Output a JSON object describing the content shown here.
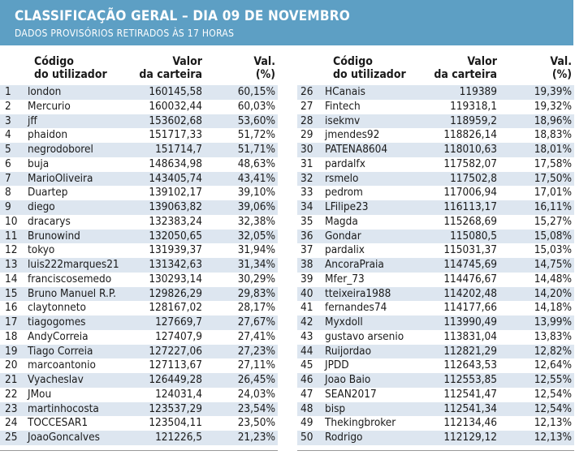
{
  "header": {
    "title": "CLASSIFICAÇÃO GERAL – DIA 09 DE NOVEMBRO",
    "subtitle": "DADOS PROVISÓRIOS RETIRADOS ÀS 17 HORAS"
  },
  "columns": {
    "user_line1": "Código",
    "user_line2": "do utilizador",
    "value_line1": "Valor",
    "value_line2": "da carteira",
    "pct_line1": "Val.",
    "pct_line2": "(%)"
  },
  "rows": [
    {
      "rank": "1",
      "user": "london",
      "value": "160145,58",
      "pct": "60,15%"
    },
    {
      "rank": "2",
      "user": "Mercurio",
      "value": "160032,44",
      "pct": "60,03%"
    },
    {
      "rank": "3",
      "user": "jff",
      "value": "153602,68",
      "pct": "53,60%"
    },
    {
      "rank": "4",
      "user": "phaidon",
      "value": "151717,33",
      "pct": "51,72%"
    },
    {
      "rank": "5",
      "user": "negrodoborel",
      "value": "151714,7",
      "pct": "51,71%"
    },
    {
      "rank": "6",
      "user": "buja",
      "value": "148634,98",
      "pct": "48,63%"
    },
    {
      "rank": "7",
      "user": "MarioOliveira",
      "value": "143405,74",
      "pct": "43,41%"
    },
    {
      "rank": "8",
      "user": "Duartep",
      "value": "139102,17",
      "pct": "39,10%"
    },
    {
      "rank": "9",
      "user": "diego",
      "value": "139063,82",
      "pct": "39,06%"
    },
    {
      "rank": "10",
      "user": "dracarys",
      "value": "132383,24",
      "pct": "32,38%"
    },
    {
      "rank": "11",
      "user": "Brunowind",
      "value": "132050,65",
      "pct": "32,05%"
    },
    {
      "rank": "12",
      "user": "tokyo",
      "value": "131939,37",
      "pct": "31,94%"
    },
    {
      "rank": "13",
      "user": "luis222marques21",
      "value": "131342,63",
      "pct": "31,34%"
    },
    {
      "rank": "14",
      "user": "franciscosemedo",
      "value": "130293,14",
      "pct": "30,29%"
    },
    {
      "rank": "15",
      "user": "Bruno Manuel R.P.",
      "value": "129826,29",
      "pct": "29,83%"
    },
    {
      "rank": "16",
      "user": "claytonneto",
      "value": "128167,02",
      "pct": "28,17%"
    },
    {
      "rank": "17",
      "user": "tiagogomes",
      "value": "127669,7",
      "pct": "27,67%"
    },
    {
      "rank": "18",
      "user": "AndyCorreia",
      "value": "127407,9",
      "pct": "27,41%"
    },
    {
      "rank": "19",
      "user": "Tiago Correia",
      "value": "127227,06",
      "pct": "27,23%"
    },
    {
      "rank": "20",
      "user": "marcoantonio",
      "value": "127113,67",
      "pct": "27,11%"
    },
    {
      "rank": "21",
      "user": "Vyacheslav",
      "value": "126449,28",
      "pct": "26,45%"
    },
    {
      "rank": "22",
      "user": "JMou",
      "value": "124031,4",
      "pct": "24,03%"
    },
    {
      "rank": "23",
      "user": "martinhocosta",
      "value": "123537,29",
      "pct": "23,54%"
    },
    {
      "rank": "24",
      "user": "TOCCESAR1",
      "value": "123504,11",
      "pct": "23,50%"
    },
    {
      "rank": "25",
      "user": "JoaoGoncalves",
      "value": "121226,5",
      "pct": "21,23%"
    },
    {
      "rank": "26",
      "user": "HCanais",
      "value": "119389",
      "pct": "19,39%"
    },
    {
      "rank": "27",
      "user": "Fintech",
      "value": "119318,1",
      "pct": "19,32%"
    },
    {
      "rank": "28",
      "user": "isekmv",
      "value": "118959,2",
      "pct": "18,96%"
    },
    {
      "rank": "29",
      "user": "jmendes92",
      "value": "118826,14",
      "pct": "18,83%"
    },
    {
      "rank": "30",
      "user": "PATENA8604",
      "value": "118010,63",
      "pct": "18,01%"
    },
    {
      "rank": "31",
      "user": "pardalfx",
      "value": "117582,07",
      "pct": "17,58%"
    },
    {
      "rank": "32",
      "user": "rsmelo",
      "value": "117502,8",
      "pct": "17,50%"
    },
    {
      "rank": "33",
      "user": "pedrom",
      "value": "117006,94",
      "pct": "17,01%"
    },
    {
      "rank": "34",
      "user": "LFilipe23",
      "value": "116113,17",
      "pct": "16,11%"
    },
    {
      "rank": "35",
      "user": "Magda",
      "value": "115268,69",
      "pct": "15,27%"
    },
    {
      "rank": "36",
      "user": "Gondar",
      "value": "115080,5",
      "pct": "15,08%"
    },
    {
      "rank": "37",
      "user": "pardalix",
      "value": "115031,37",
      "pct": "15,03%"
    },
    {
      "rank": "38",
      "user": "AncoraPraia",
      "value": "114745,69",
      "pct": "14,75%"
    },
    {
      "rank": "39",
      "user": "Mfer_73",
      "value": "114476,67",
      "pct": "14,48%"
    },
    {
      "rank": "40",
      "user": "tteixeira1988",
      "value": "114202,48",
      "pct": "14,20%"
    },
    {
      "rank": "41",
      "user": "fernandes74",
      "value": "114177,66",
      "pct": "14,18%"
    },
    {
      "rank": "42",
      "user": "Myxdoll",
      "value": "113990,49",
      "pct": "13,99%"
    },
    {
      "rank": "43",
      "user": "gustavo arsenio",
      "value": "113831,04",
      "pct": "13,83%"
    },
    {
      "rank": "44",
      "user": "Ruijordao",
      "value": "112821,29",
      "pct": "12,82%"
    },
    {
      "rank": "45",
      "user": "JPDD",
      "value": "112643,53",
      "pct": "12,64%"
    },
    {
      "rank": "46",
      "user": "Joao Baio",
      "value": "112553,85",
      "pct": "12,55%"
    },
    {
      "rank": "47",
      "user": "SEAN2017",
      "value": "112541,47",
      "pct": "12,54%"
    },
    {
      "rank": "48",
      "user": "bisp",
      "value": "112541,34",
      "pct": "12,54%"
    },
    {
      "rank": "49",
      "user": "Thekingbroker",
      "value": "112134,46",
      "pct": "12,13%"
    },
    {
      "rank": "50",
      "user": "Rodrigo",
      "value": "112129,12",
      "pct": "12,13%"
    }
  ]
}
